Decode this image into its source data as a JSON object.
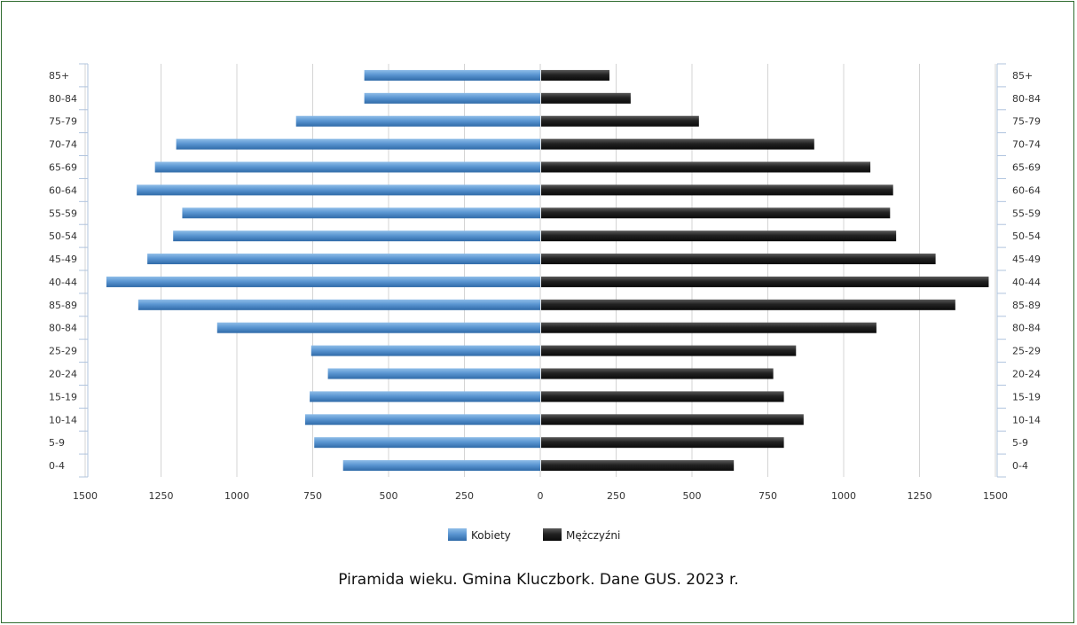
{
  "chart_data": {
    "type": "bar",
    "orientation": "horizontal-pyramid",
    "categories": [
      "85+",
      "80-84",
      "75-79",
      "70-74",
      "65-69",
      "60-64",
      "55-59",
      "50-54",
      "45-49",
      "40-44",
      "85-89",
      "80-84",
      "25-29",
      "20-24",
      "15-19",
      "10-14",
      "5-9",
      "0-4"
    ],
    "series": [
      {
        "name": "Kobiety",
        "color": "#4a86c5",
        "values": [
          580,
          580,
          805,
          1200,
          1270,
          1330,
          1180,
          1210,
          1295,
          1430,
          1325,
          1065,
          755,
          700,
          760,
          775,
          745,
          650
        ]
      },
      {
        "name": "Mężczyźni",
        "color": "#1e1e1e",
        "values": [
          225,
          295,
          520,
          900,
          1085,
          1160,
          1150,
          1170,
          1300,
          1475,
          1365,
          1105,
          840,
          765,
          800,
          865,
          800,
          635
        ]
      }
    ],
    "x_ticks": [
      "1500",
      "1250",
      "1000",
      "750",
      "500",
      "250",
      "0",
      "250",
      "500",
      "750",
      "1000",
      "1250",
      "1500"
    ],
    "xlim": [
      -1500,
      1500
    ],
    "grid": true,
    "legend_position": "bottom",
    "title": "Piramida wieku. Gmina Kluczbork. Dane GUS. 2023 r."
  }
}
